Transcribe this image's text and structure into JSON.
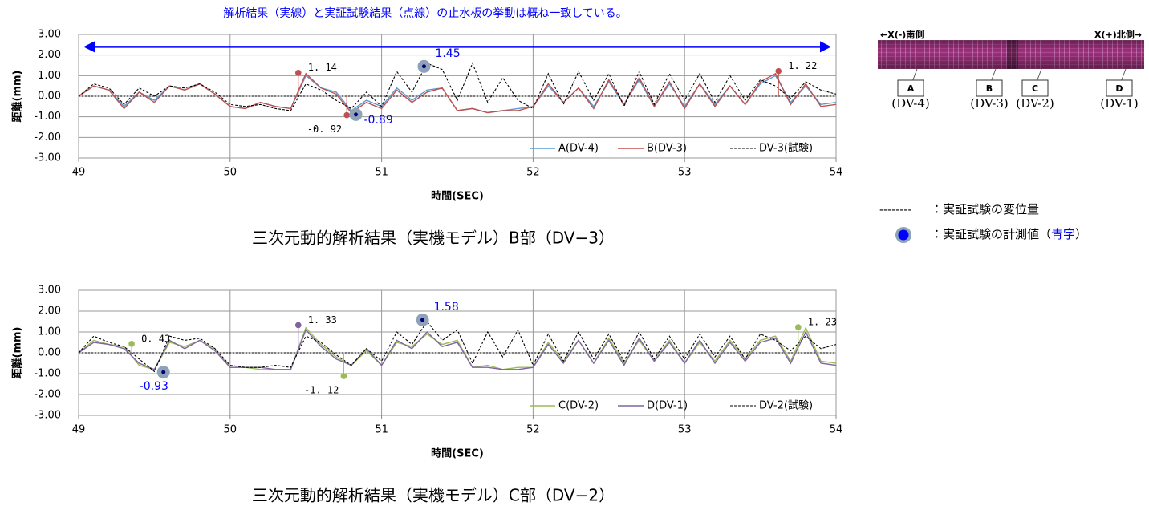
{
  "header_note": "解析結果（実線）と実証試験結果（点線）の止水板の挙動は概ね一致している。",
  "chart_data": [
    {
      "type": "line",
      "caption": "三次元動的解析結果（実機モデル）B部（DV−3）",
      "xlabel": "時間(SEC)",
      "ylabel": "距離(mm)",
      "xlim": [
        49,
        54
      ],
      "ylim": [
        -3,
        3
      ],
      "xticks": [
        49,
        50,
        51,
        52,
        53,
        54
      ],
      "yticks": [
        {
          "value": 3,
          "label": "3.00"
        },
        {
          "value": 2,
          "label": "2.00"
        },
        {
          "value": 1,
          "label": "1.00"
        },
        {
          "value": 0,
          "label": "0.00"
        },
        {
          "value": -1,
          "label": "-1.00"
        },
        {
          "value": -2,
          "label": "-2.00"
        },
        {
          "value": -3,
          "label": "-3.00"
        }
      ],
      "grid": true,
      "arrow": true,
      "legend": "lower right",
      "x": [
        49,
        49.1,
        49.2,
        49.3,
        49.4,
        49.5,
        49.6,
        49.7,
        49.8,
        49.9,
        50,
        50.1,
        50.2,
        50.3,
        50.4,
        50.5,
        50.6,
        50.7,
        50.8,
        50.9,
        51,
        51.1,
        51.2,
        51.3,
        51.4,
        51.5,
        51.6,
        51.7,
        51.8,
        51.9,
        52,
        52.1,
        52.2,
        52.3,
        52.4,
        52.5,
        52.6,
        52.7,
        52.8,
        52.9,
        53,
        53.1,
        53.2,
        53.3,
        53.4,
        53.5,
        53.6,
        53.7,
        53.8,
        53.9,
        54
      ],
      "series": [
        {
          "name": "A(DV-4)",
          "color": "#5b9bd5",
          "dash": false,
          "values": [
            0,
            0.5,
            0.3,
            -0.5,
            0.2,
            -0.2,
            0.5,
            0.3,
            0.6,
            0.1,
            -0.5,
            -0.6,
            -0.3,
            -0.5,
            -0.6,
            1.0,
            0.4,
            0.2,
            -0.7,
            -0.2,
            -0.5,
            0.4,
            -0.2,
            0.3,
            0.4,
            -0.7,
            -0.6,
            -0.8,
            -0.7,
            -0.6,
            -0.5,
            0.5,
            -0.3,
            0.4,
            -0.5,
            0.7,
            -0.4,
            0.8,
            -0.5,
            0.6,
            -0.5,
            0.6,
            -0.4,
            0.5,
            -0.4,
            0.6,
            1.0,
            -0.3,
            0.5,
            -0.4,
            -0.3
          ]
        },
        {
          "name": "B(DV-3)",
          "color": "#c0504d",
          "dash": false,
          "values": [
            0,
            0.5,
            0.3,
            -0.6,
            0.2,
            -0.3,
            0.5,
            0.3,
            0.6,
            0.1,
            -0.5,
            -0.6,
            -0.3,
            -0.5,
            -0.6,
            1.1,
            0.4,
            0.1,
            -0.8,
            -0.3,
            -0.6,
            0.3,
            -0.3,
            0.2,
            0.4,
            -0.7,
            -0.6,
            -0.8,
            -0.7,
            -0.7,
            -0.5,
            0.6,
            -0.3,
            0.4,
            -0.6,
            0.8,
            -0.4,
            0.9,
            -0.5,
            0.7,
            -0.6,
            0.6,
            -0.5,
            0.5,
            -0.4,
            0.7,
            1.1,
            -0.4,
            0.6,
            -0.5,
            -0.4
          ]
        },
        {
          "name": "DV-3(試験)",
          "color": "#000000",
          "dash": true,
          "values": [
            0,
            0.6,
            0.4,
            -0.4,
            0.4,
            0,
            0.5,
            0.4,
            0.6,
            0.2,
            -0.4,
            -0.5,
            -0.4,
            -0.6,
            -0.7,
            0.6,
            0.3,
            -0.2,
            -0.6,
            0.2,
            -0.5,
            1.2,
            0.2,
            1.6,
            1.3,
            -0.2,
            1.6,
            -0.3,
            0.9,
            -0.2,
            -0.6,
            1.1,
            -0.4,
            1.2,
            -0.2,
            1.1,
            -0.5,
            1.2,
            -0.4,
            1.1,
            -0.2,
            1.1,
            -0.3,
            1.0,
            -0.2,
            0.8,
            0.5,
            -0.1,
            0.7,
            0.3,
            0.1
          ]
        }
      ],
      "annotations": [
        {
          "x": 50.45,
          "y": 1.14,
          "label": "1. 14",
          "color": "#c0504d",
          "marker": "analysis"
        },
        {
          "x": 50.77,
          "y": -0.92,
          "label": "-0. 92",
          "color": "#c0504d",
          "marker": "analysis"
        },
        {
          "x": 50.83,
          "y": -0.89,
          "label": "-0.89",
          "color": "#0000ff",
          "marker": "measured"
        },
        {
          "x": 51.28,
          "y": 1.45,
          "label": "1.45",
          "color": "#0000ff",
          "marker": "measured"
        },
        {
          "x": 53.62,
          "y": 1.22,
          "label": "1. 22",
          "color": "#c0504d",
          "marker": "analysis"
        }
      ]
    },
    {
      "type": "line",
      "caption": "三次元動的解析結果（実機モデル）C部（DV−2）",
      "xlabel": "時間(SEC)",
      "ylabel": "距離(mm)",
      "xlim": [
        49,
        54
      ],
      "ylim": [
        -3,
        3
      ],
      "xticks": [
        49,
        50,
        51,
        52,
        53,
        54
      ],
      "yticks": [
        {
          "value": 3,
          "label": "3.00"
        },
        {
          "value": 2,
          "label": "2.00"
        },
        {
          "value": 1,
          "label": "1.00"
        },
        {
          "value": 0,
          "label": "0.00"
        },
        {
          "value": -1,
          "label": "-1.00"
        },
        {
          "value": -2,
          "label": "-2.00"
        },
        {
          "value": -3,
          "label": "-3.00"
        }
      ],
      "grid": true,
      "arrow": false,
      "legend": "lower right",
      "x": [
        49,
        49.1,
        49.2,
        49.3,
        49.4,
        49.5,
        49.6,
        49.7,
        49.8,
        49.9,
        50,
        50.1,
        50.2,
        50.3,
        50.4,
        50.5,
        50.6,
        50.7,
        50.8,
        50.9,
        51,
        51.1,
        51.2,
        51.3,
        51.4,
        51.5,
        51.6,
        51.7,
        51.8,
        51.9,
        52,
        52.1,
        52.2,
        52.3,
        52.4,
        52.5,
        52.6,
        52.7,
        52.8,
        52.9,
        53,
        53.1,
        53.2,
        53.3,
        53.4,
        53.5,
        53.6,
        53.7,
        53.8,
        53.9,
        54
      ],
      "series": [
        {
          "name": "C(DV-2)",
          "color": "#9bbb59",
          "dash": false,
          "values": [
            0,
            0.6,
            0.4,
            0.3,
            -0.6,
            -0.8,
            0.5,
            0.3,
            0.6,
            0.2,
            -0.7,
            -0.7,
            -0.8,
            -0.8,
            -0.8,
            1.2,
            0.4,
            -0.2,
            -0.6,
            0.1,
            -0.6,
            0.5,
            0.3,
            0.9,
            0.4,
            0.6,
            -0.7,
            -0.6,
            -0.8,
            -0.7,
            -0.7,
            0.5,
            -0.4,
            0.6,
            -0.5,
            0.7,
            -0.5,
            0.6,
            -0.4,
            0.6,
            -0.5,
            0.5,
            -0.4,
            0.6,
            -0.3,
            0.6,
            0.8,
            -0.4,
            1.2,
            -0.4,
            -0.5
          ]
        },
        {
          "name": "D(DV-1)",
          "color": "#8064a2",
          "dash": false,
          "values": [
            0,
            0.5,
            0.4,
            0.2,
            -0.5,
            -0.8,
            0.6,
            0.2,
            0.6,
            0.1,
            -0.7,
            -0.7,
            -0.7,
            -0.8,
            -0.8,
            1.1,
            0.3,
            -0.3,
            -0.6,
            0.2,
            -0.6,
            0.6,
            0.2,
            1.0,
            0.3,
            0.5,
            -0.7,
            -0.7,
            -0.8,
            -0.8,
            -0.7,
            0.4,
            -0.5,
            0.6,
            -0.5,
            0.6,
            -0.6,
            0.7,
            -0.4,
            0.5,
            -0.5,
            0.6,
            -0.5,
            0.5,
            -0.4,
            0.5,
            0.7,
            -0.5,
            1.0,
            -0.5,
            -0.6
          ]
        },
        {
          "name": "DV-2(試験)",
          "color": "#000000",
          "dash": true,
          "values": [
            0,
            0.8,
            0.5,
            0.3,
            -0.3,
            -0.9,
            0.8,
            0.6,
            0.7,
            0.2,
            -0.6,
            -0.7,
            -0.7,
            -0.6,
            -0.7,
            0.8,
            0.5,
            -0.1,
            -0.6,
            0.2,
            -0.4,
            1.0,
            0.4,
            1.5,
            0.6,
            1.1,
            -0.5,
            1.0,
            -0.2,
            1.1,
            -0.6,
            0.9,
            -0.4,
            1.0,
            -0.3,
            0.9,
            -0.4,
            1.0,
            -0.3,
            0.8,
            -0.3,
            0.9,
            -0.2,
            0.8,
            -0.3,
            0.9,
            0.6,
            0.1,
            0.8,
            0.2,
            0.4
          ]
        }
      ],
      "annotations": [
        {
          "x": 49.35,
          "y": 0.43,
          "label": "0. 43",
          "color": "#9bbb59",
          "marker": "analysis"
        },
        {
          "x": 49.56,
          "y": -0.93,
          "label": "-0.93",
          "color": "#0000ff",
          "marker": "measured"
        },
        {
          "x": 50.45,
          "y": 1.33,
          "label": "1. 33",
          "color": "#8064a2",
          "marker": "analysis"
        },
        {
          "x": 50.75,
          "y": -1.12,
          "label": "-1. 12",
          "color": "#9bbb59",
          "marker": "analysis"
        },
        {
          "x": 51.27,
          "y": 1.58,
          "label": "1.58",
          "color": "#0000ff",
          "marker": "measured"
        },
        {
          "x": 53.75,
          "y": 1.23,
          "label": "1. 23",
          "color": "#9bbb59",
          "marker": "analysis"
        }
      ]
    }
  ],
  "diagram": {
    "left_label": "←X(-)南側",
    "right_label": "X(+)北側→",
    "sections": [
      {
        "letter": "A",
        "label": "(DV-4)"
      },
      {
        "letter": "B",
        "label": "(DV-3)"
      },
      {
        "letter": "C",
        "label": "(DV-2)"
      },
      {
        "letter": "D",
        "label": "(DV-1)"
      }
    ]
  },
  "legend_notes": {
    "dashed_symbol": "--------",
    "dashed_text": "：実証試験の変位量",
    "marker_text_before": "：実証試験の計測値（",
    "marker_text_blue": "青字",
    "marker_text_after": "）"
  }
}
